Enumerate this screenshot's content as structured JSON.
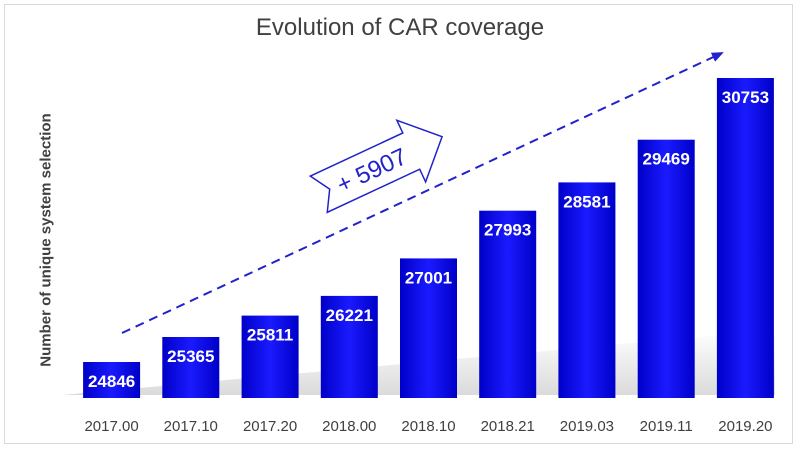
{
  "chart_data": {
    "type": "bar",
    "title": "Evolution of CAR coverage",
    "xlabel": "",
    "ylabel": "Number of unique system selection",
    "categories": [
      "2017.00",
      "2017.10",
      "2017.20",
      "2018.00",
      "2018.10",
      "2018.21",
      "2019.03",
      "2019.11",
      "2019.20"
    ],
    "values": [
      24846,
      25365,
      25811,
      26221,
      27001,
      27993,
      28581,
      29469,
      30753
    ],
    "ylim": [
      24000,
      31000
    ],
    "grid": false,
    "legend": "none",
    "bar_color": "#1a1aff",
    "bar_color_dark": "#0000c8",
    "label_color": "#ffffff",
    "annotation": {
      "text": "+ 5907",
      "style": "dashed trend arrow with outlined block arrow label",
      "color": "#2222cc"
    }
  }
}
